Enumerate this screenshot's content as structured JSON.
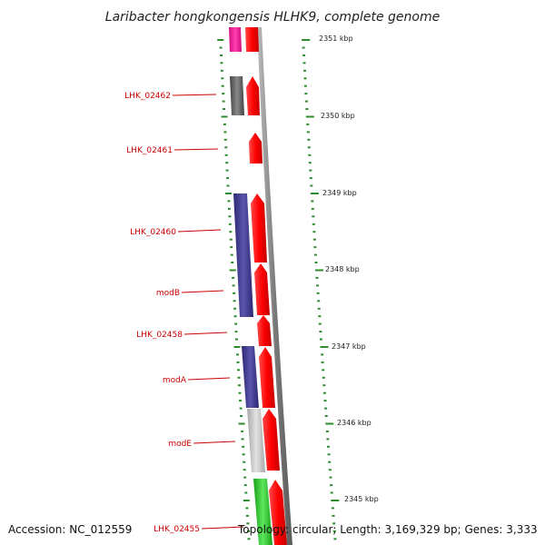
{
  "title": "Laribacter hongkongensis HLHK9, complete genome",
  "accession": "Accession: NC_012559",
  "topology": "Topology: circular; Length: 3,169,329 bp; Genes: 3,333",
  "colors": {
    "label": "#cc0000",
    "tick": "#2e8b2e",
    "backbone": "#8a8a8a",
    "forward_gene": "#ff0000",
    "pink": "#ff2a9d",
    "purple": "#4b4494",
    "gray_dark": "#666666",
    "gray_light": "#c9c9c9",
    "green": "#33cc33"
  },
  "scale_labels": [
    "2351 kbp",
    "2350 kbp",
    "2349 kbp",
    "2348 kbp",
    "2347 kbp",
    "2346 kbp",
    "2345 kbp"
  ],
  "gene_labels": [
    "LHK_02462",
    "LHK_02461",
    "LHK_02460",
    "modB",
    "LHK_02458",
    "modA",
    "modE",
    "LHK_02455"
  ]
}
